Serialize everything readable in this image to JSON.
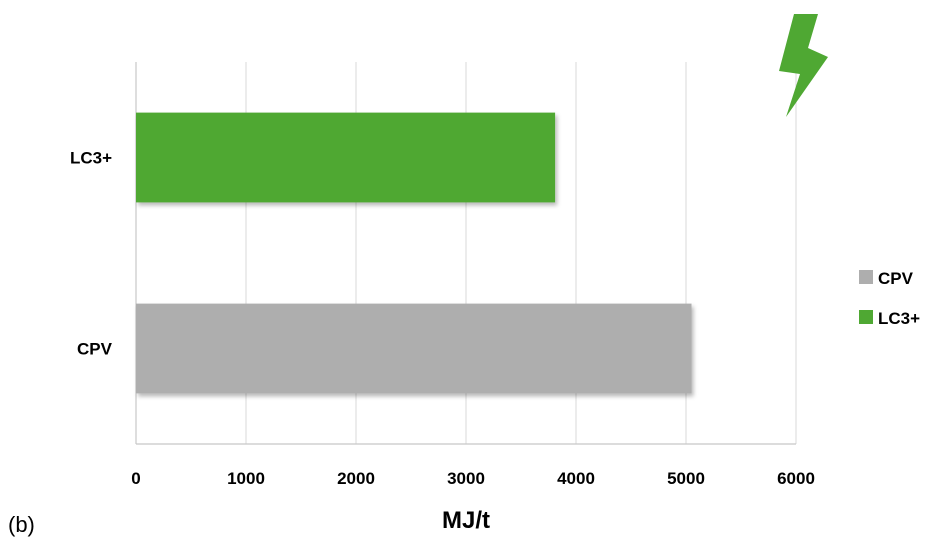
{
  "panel_label": "(b)",
  "icon": {
    "name": "lightning-bolt-icon",
    "color": "#4fa833"
  },
  "chart_data": {
    "type": "bar",
    "orientation": "horizontal",
    "categories": [
      "CPV",
      "LC3+"
    ],
    "values": [
      5050,
      3810
    ],
    "colors": [
      "#aeaeae",
      "#4fa833"
    ],
    "xlabel": "MJ/t",
    "ylabel": "",
    "xlim": [
      0,
      6000
    ],
    "xticks": [
      "0",
      "1000",
      "2000",
      "3000",
      "4000",
      "5000",
      "6000"
    ],
    "grid": true,
    "legend": {
      "position": "right",
      "entries": [
        {
          "name": "CPV",
          "color": "#aeaeae"
        },
        {
          "name": "LC3+",
          "color": "#4fa833"
        }
      ]
    }
  }
}
